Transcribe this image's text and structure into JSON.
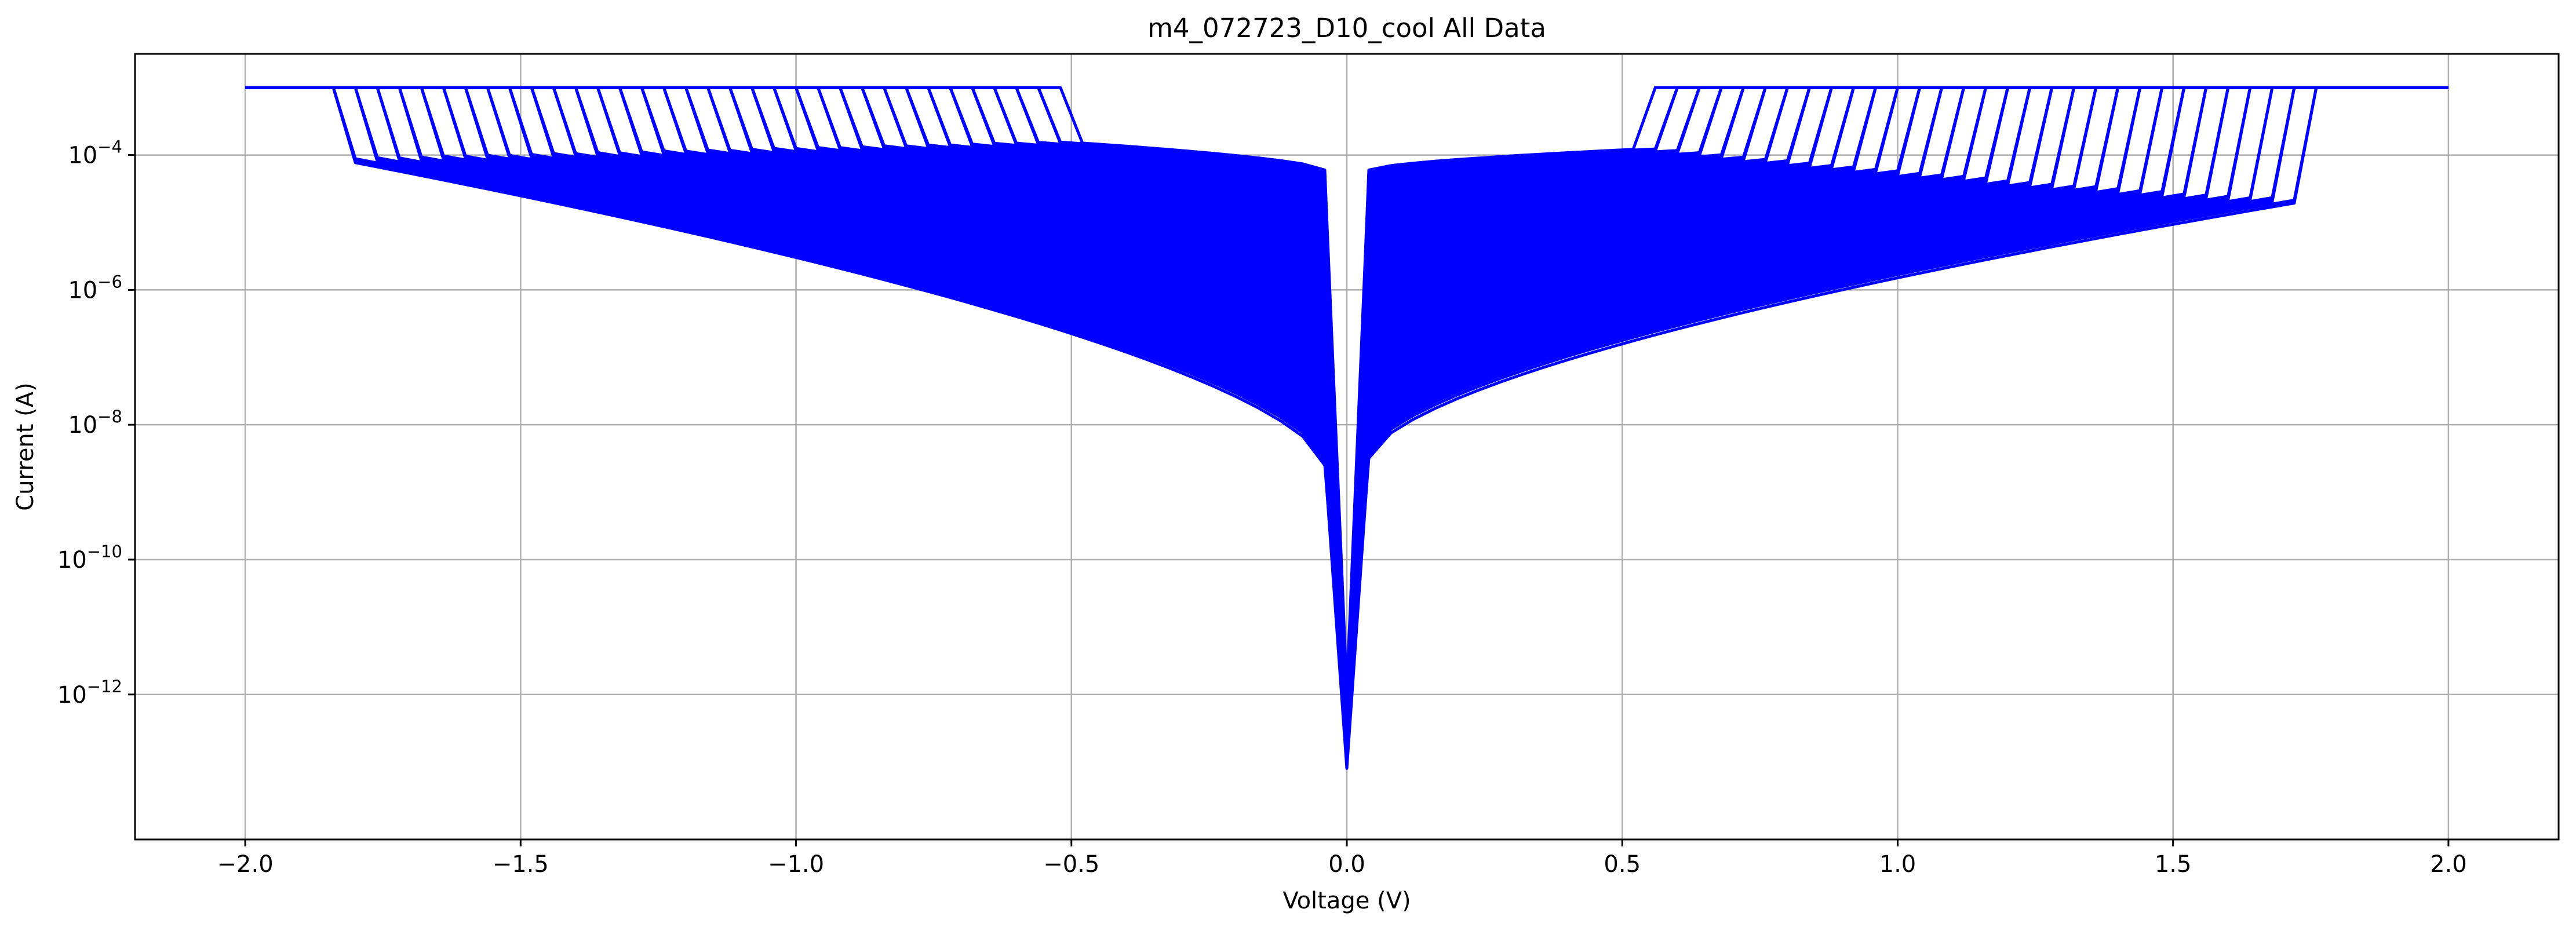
{
  "chart_data": {
    "type": "line",
    "title": "m4_072723_D10_cool All Data",
    "xlabel": "Voltage (V)",
    "ylabel": "Current (A)",
    "xlim": [
      -2.2,
      2.2
    ],
    "ylim_exponent": [
      -14.15,
      -2.5
    ],
    "y_scale": "log",
    "grid": true,
    "line_color": "#0000ff",
    "x_ticks": [
      -2.0,
      -1.5,
      -1.0,
      -0.5,
      0.0,
      0.5,
      1.0,
      1.5,
      2.0
    ],
    "x_tick_labels": [
      "−2.0",
      "−1.5",
      "−1.0",
      "−0.5",
      "0.0",
      "0.5",
      "1.0",
      "1.5",
      "2.0"
    ],
    "y_tick_exponents": [
      -4,
      -6,
      -8,
      -10,
      -12
    ],
    "y_tick_labels": [
      {
        "base": "10",
        "exp": "−4"
      },
      {
        "base": "10",
        "exp": "−6"
      },
      {
        "base": "10",
        "exp": "−8"
      },
      {
        "base": "10",
        "exp": "−10"
      },
      {
        "base": "10",
        "exp": "−12"
      }
    ],
    "compliance_current": 0.001,
    "series_description": {
      "count": 120,
      "x_step": 0.04,
      "sweep_range": [
        -2.0,
        2.0
      ],
      "low_envelope": {
        "left_current_at_minus_1_76": 8.9e-05,
        "right_current_at_plus_1_68": 2.2e-05,
        "current_at_minus_0_04": 2.5e-09,
        "current_at_plus_0_04": 3.2e-09,
        "minimum_at_zero": 7e-14
      },
      "high_envelope": {
        "left_current_at_minus_0_04": 6e-05,
        "right_current_at_plus_0_04": 6e-05,
        "maximum_at_zero": 3e-12
      },
      "compliance_voltage_left_range": [
        -1.84,
        -0.52
      ],
      "compliance_voltage_right_range": [
        0.56,
        1.76
      ]
    }
  }
}
